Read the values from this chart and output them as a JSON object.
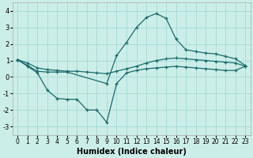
{
  "background_color": "#cceee8",
  "grid_color": "#aaddda",
  "line_color": "#1a6b6b",
  "xlabel": "Humidex (Indice chaleur)",
  "xlim": [
    -0.5,
    23.5
  ],
  "ylim": [
    -3.5,
    4.5
  ],
  "yticks": [
    -3,
    -2,
    -1,
    0,
    1,
    2,
    3,
    4
  ],
  "xticks": [
    0,
    1,
    2,
    3,
    4,
    5,
    6,
    7,
    8,
    9,
    10,
    11,
    12,
    13,
    14,
    15,
    16,
    17,
    18,
    19,
    20,
    21,
    22,
    23
  ],
  "line1_x": [
    0,
    1,
    2,
    3,
    4,
    5,
    9,
    10,
    11,
    12,
    13,
    14,
    15,
    16,
    17,
    18,
    19,
    20,
    21,
    22,
    23
  ],
  "line1_y": [
    1.05,
    0.7,
    0.35,
    0.3,
    0.3,
    0.3,
    -0.4,
    1.3,
    2.1,
    3.0,
    3.6,
    3.85,
    3.55,
    2.3,
    1.65,
    1.55,
    1.45,
    1.4,
    1.25,
    1.1,
    0.7
  ],
  "line2_x": [
    0,
    1,
    2,
    3,
    4,
    5,
    6,
    7,
    8,
    9,
    10,
    11,
    12,
    13,
    14,
    15,
    16,
    17,
    18,
    19,
    20,
    21,
    22,
    23
  ],
  "line2_y": [
    1.05,
    0.65,
    0.25,
    -0.8,
    -1.3,
    -1.35,
    -1.35,
    -2.0,
    -2.0,
    -2.75,
    -0.4,
    0.25,
    0.4,
    0.5,
    0.55,
    0.6,
    0.65,
    0.6,
    0.55,
    0.5,
    0.45,
    0.4,
    0.4,
    0.65
  ],
  "line3_x": [
    0,
    1,
    2,
    3,
    4,
    5,
    6,
    7,
    8,
    9,
    10,
    11,
    12,
    13,
    14,
    15,
    16,
    17,
    18,
    19,
    20,
    21,
    22,
    23
  ],
  "line3_y": [
    1.05,
    0.85,
    0.55,
    0.45,
    0.4,
    0.35,
    0.35,
    0.3,
    0.25,
    0.2,
    0.35,
    0.5,
    0.65,
    0.85,
    1.0,
    1.1,
    1.15,
    1.1,
    1.05,
    1.0,
    0.95,
    0.9,
    0.85,
    0.65
  ]
}
